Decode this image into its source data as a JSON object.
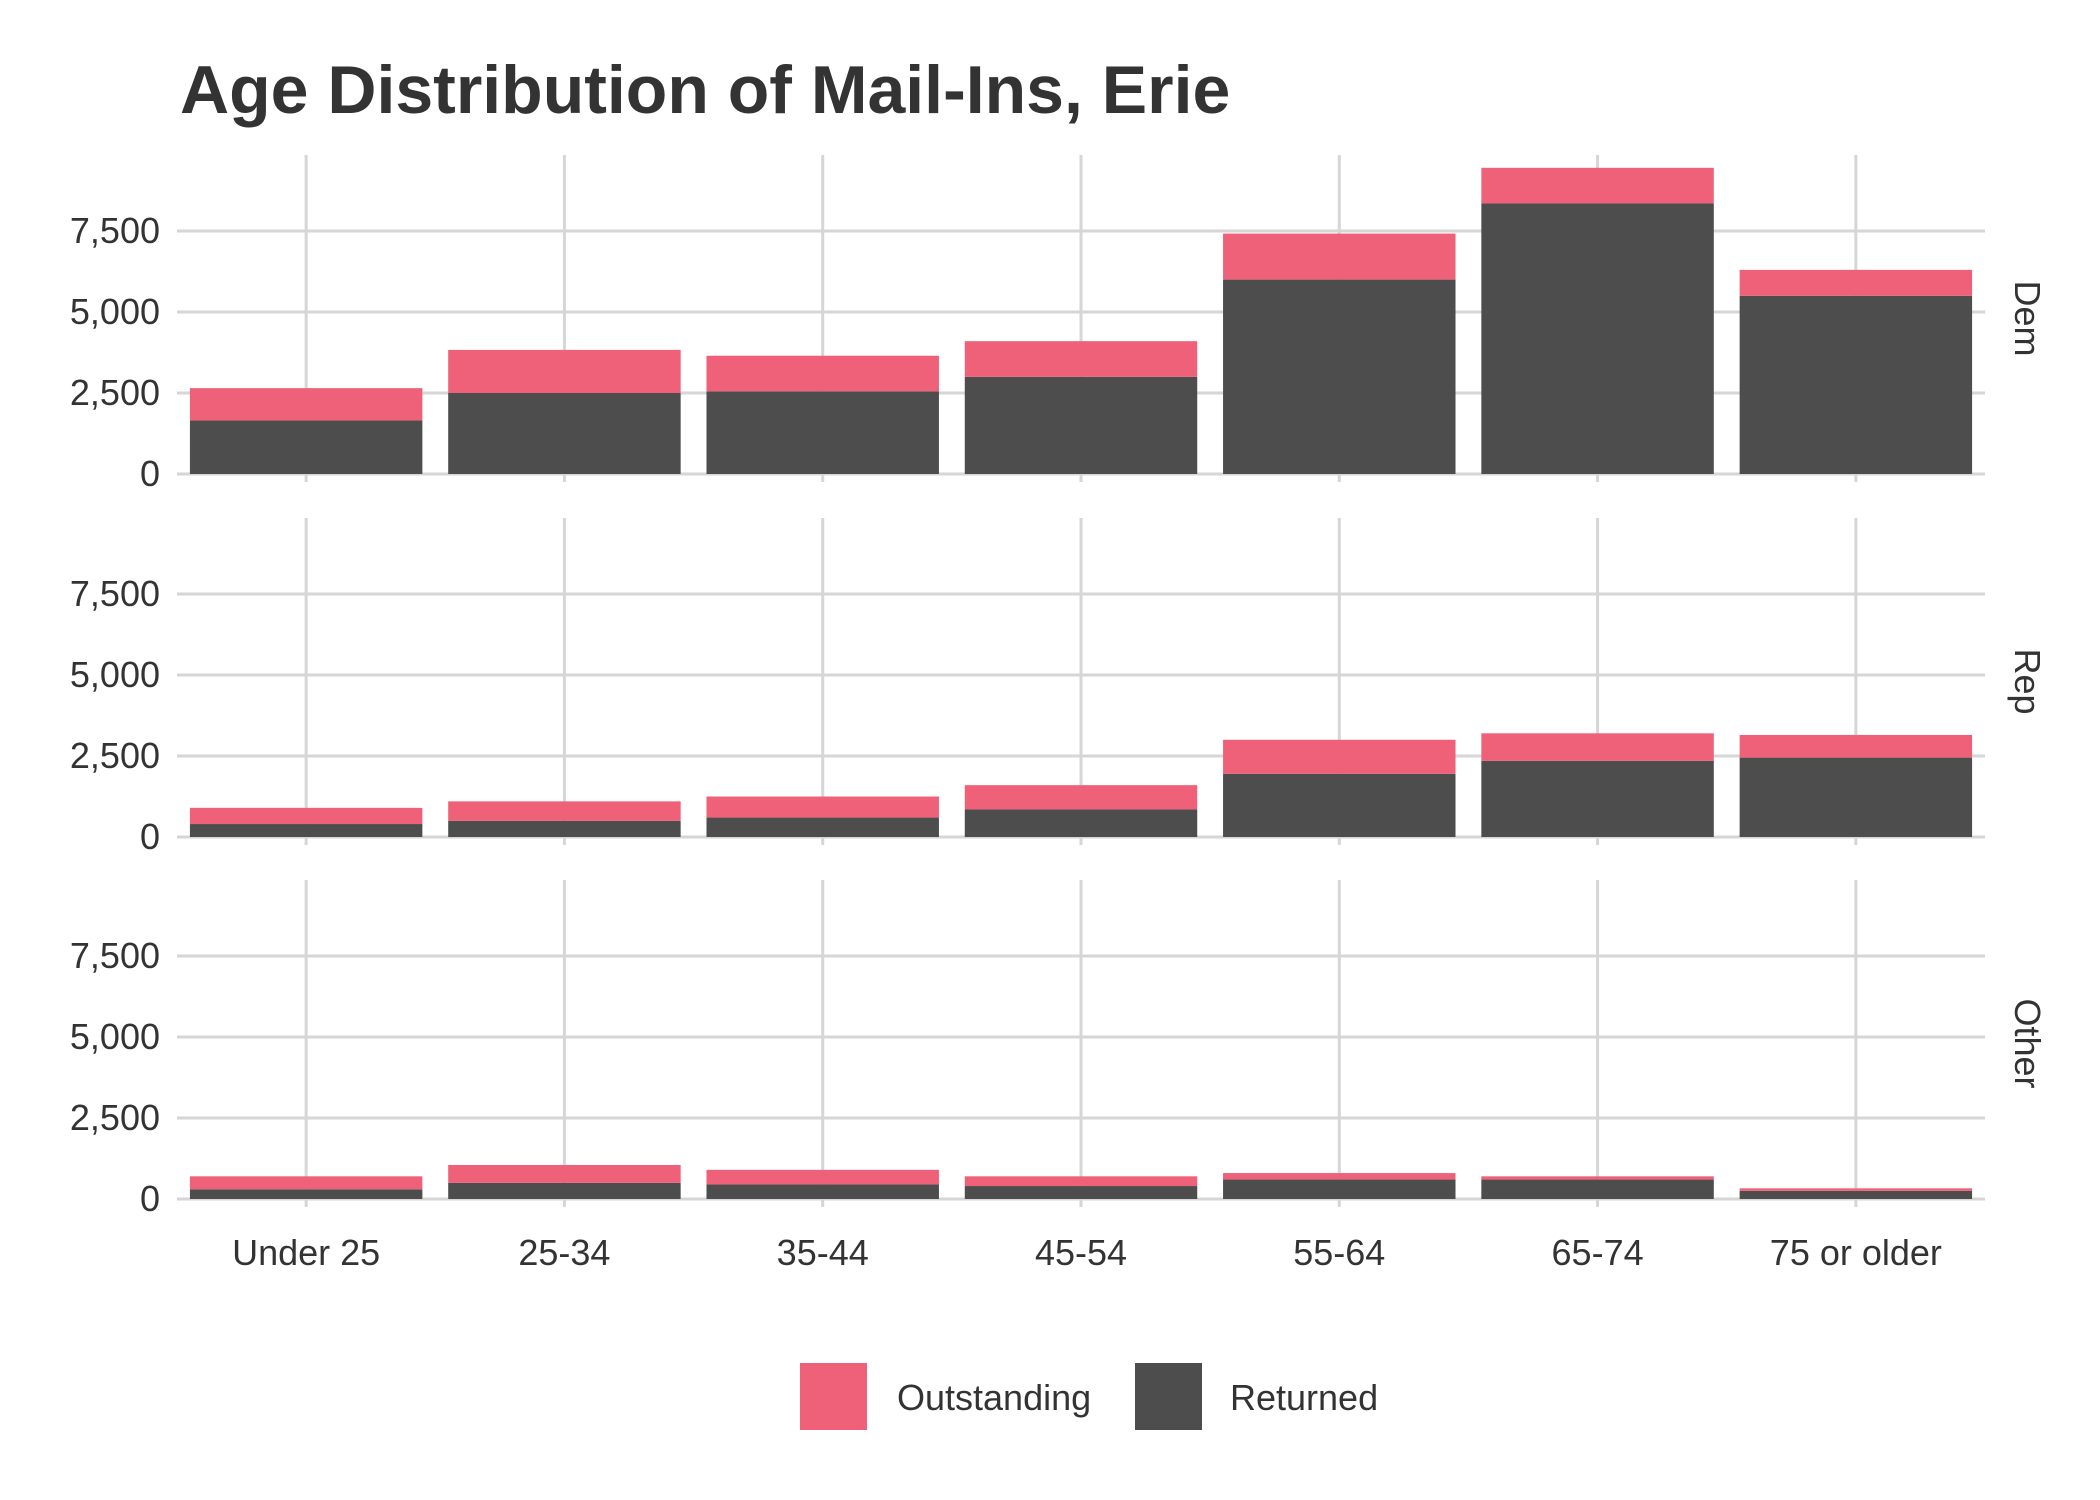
{
  "chart_data": {
    "type": "bar",
    "stacked": true,
    "title": "Age Distribution of Mail-Ins, Erie",
    "xlabel": "",
    "ylabel": "",
    "categories": [
      "Under 25",
      "25-34",
      "35-44",
      "45-54",
      "55-64",
      "65-74",
      "75 or older"
    ],
    "ylim": [
      0,
      10000
    ],
    "yticks": [
      0,
      2500,
      5000,
      7500
    ],
    "ytick_labels": [
      "0",
      "2,500",
      "5,000",
      "7,500"
    ],
    "grid": true,
    "legend": {
      "position": "bottom",
      "entries": [
        "Outstanding",
        "Returned"
      ]
    },
    "colors": {
      "Outstanding": "#ef6079",
      "Returned": "#4d4d4d"
    },
    "facets": [
      {
        "label": "Dem",
        "series": [
          {
            "name": "Returned",
            "values": [
              1650,
              2500,
              2550,
              3000,
              6000,
              8350,
              5500
            ]
          },
          {
            "name": "Outstanding",
            "values": [
              1000,
              1330,
              1100,
              1100,
              1420,
              1100,
              800
            ]
          }
        ]
      },
      {
        "label": "Rep",
        "series": [
          {
            "name": "Returned",
            "values": [
              400,
              500,
              600,
              850,
              1950,
              2350,
              2450
            ]
          },
          {
            "name": "Outstanding",
            "values": [
              500,
              600,
              650,
              750,
              1050,
              850,
              700
            ]
          }
        ]
      },
      {
        "label": "Other",
        "series": [
          {
            "name": "Returned",
            "values": [
              300,
              500,
              450,
              400,
              600,
              600,
              250
            ]
          },
          {
            "name": "Outstanding",
            "values": [
              400,
              550,
              450,
              300,
              200,
              100,
              80
            ]
          }
        ]
      }
    ]
  }
}
